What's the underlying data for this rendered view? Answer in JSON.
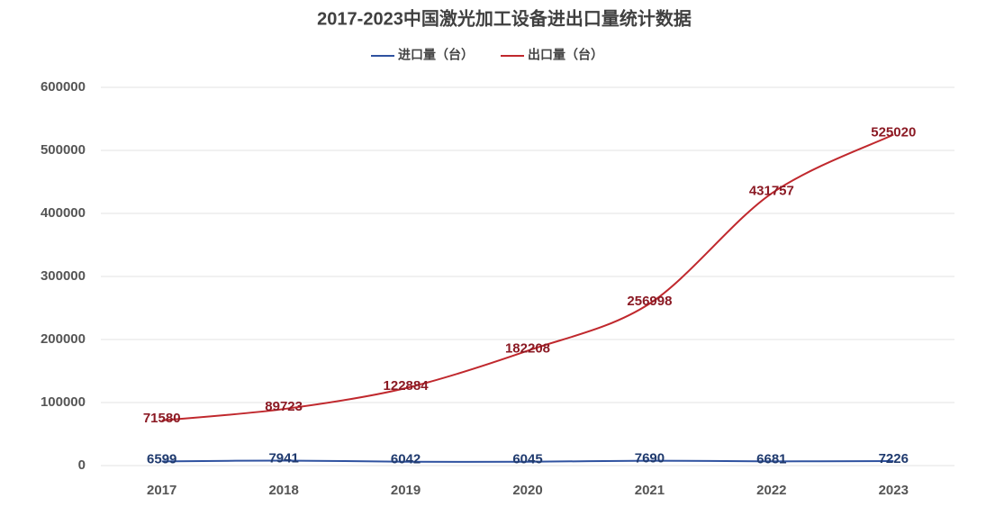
{
  "chart_data": {
    "type": "line",
    "title": "2017-2023中国激光加工设备进出口量统计数据",
    "categories": [
      "2017",
      "2018",
      "2019",
      "2020",
      "2021",
      "2022",
      "2023"
    ],
    "series": [
      {
        "name": "进口量（台）",
        "color": "#2f52a0",
        "label_color": "#1f3a6e",
        "values": [
          6599,
          7941,
          6042,
          6045,
          7690,
          6681,
          7226
        ]
      },
      {
        "name": "出口量（台）",
        "color": "#c0282d",
        "label_color": "#8b1a24",
        "values": [
          71580,
          89723,
          122884,
          182208,
          256998,
          431757,
          525020
        ]
      }
    ],
    "ylim": [
      0,
      600000
    ],
    "yticks": [
      0,
      100000,
      200000,
      300000,
      400000,
      500000,
      600000
    ],
    "grid": true,
    "legend": "top"
  }
}
